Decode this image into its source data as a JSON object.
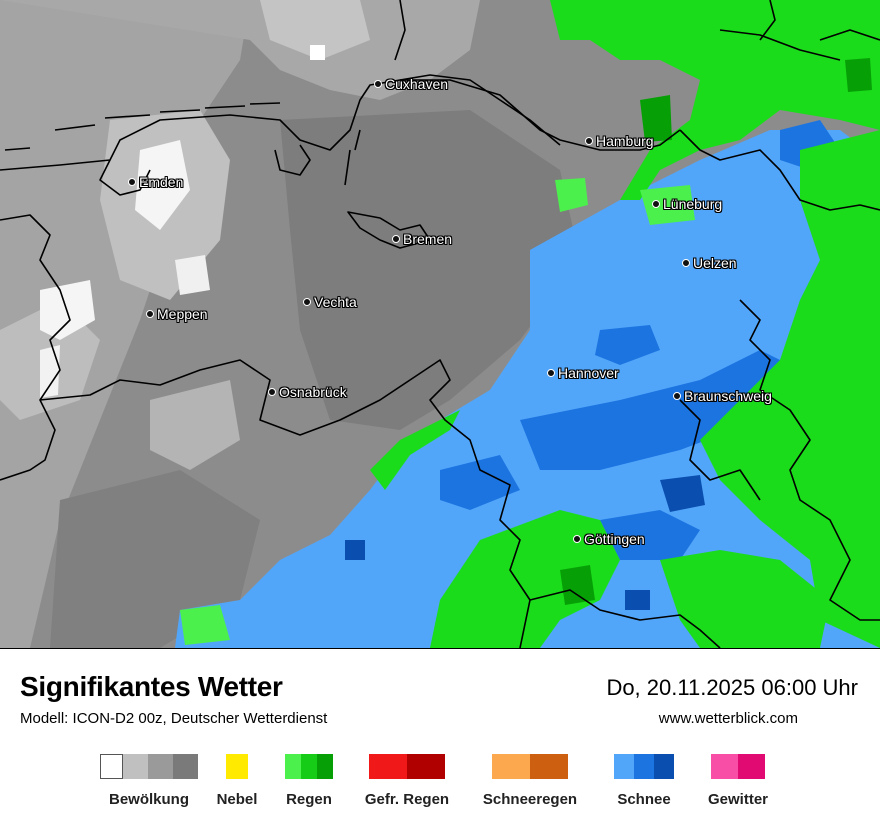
{
  "map": {
    "cities": [
      {
        "name": "Cuxhaven"
      },
      {
        "name": "Hamburg"
      },
      {
        "name": "Emden"
      },
      {
        "name": "Lüneburg"
      },
      {
        "name": "Bremen"
      },
      {
        "name": "Uelzen"
      },
      {
        "name": "Vechta"
      },
      {
        "name": "Meppen"
      },
      {
        "name": "Hannover"
      },
      {
        "name": "Osnabrück"
      },
      {
        "name": "Braunschweig"
      },
      {
        "name": "Göttingen"
      }
    ]
  },
  "header": {
    "title": "Signifikantes Wetter",
    "subtitle": "Modell: ICON-D2 00z, Deutscher Wetterdienst",
    "datetime": "Do, 20.11.2025 06:00 Uhr",
    "site": "www.wetterblick.com"
  },
  "legend": [
    {
      "label": "Bewölkung",
      "colors": [
        "#ffffff",
        "#c0c0c0",
        "#9a9a9a",
        "#7a7a7a"
      ]
    },
    {
      "label": "Nebel",
      "colors": [
        "#ffea00"
      ]
    },
    {
      "label": "Regen",
      "colors": [
        "#4cf04c",
        "#16cc16",
        "#06a006"
      ]
    },
    {
      "label": "Gefr. Regen",
      "colors": [
        "#f01818",
        "#b00000"
      ]
    },
    {
      "label": "Schneeregen",
      "colors": [
        "#fca84e",
        "#cc6010"
      ]
    },
    {
      "label": "Schnee",
      "colors": [
        "#52a6fa",
        "#1c74e0",
        "#0a4fb0"
      ]
    },
    {
      "label": "Gewitter",
      "colors": [
        "#f84ea6",
        "#e00a72"
      ]
    }
  ]
}
